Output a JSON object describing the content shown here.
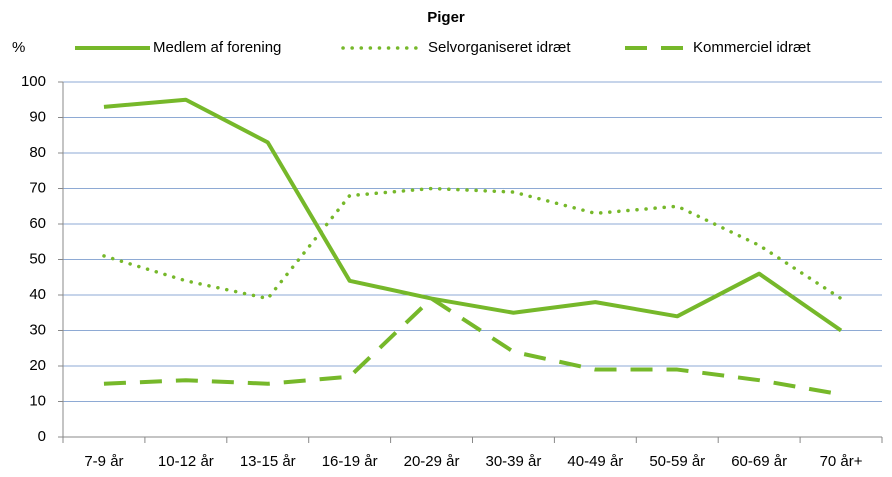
{
  "chart_data": {
    "type": "line",
    "title": "Piger",
    "y_label": "%",
    "categories": [
      "7-9 år",
      "10-12 år",
      "13-15 år",
      "16-19 år",
      "20-29 år",
      "30-39 år",
      "40-49 år",
      "50-59 år",
      "60-69 år",
      "70 år+"
    ],
    "series": [
      {
        "name": "Medlem af forening",
        "color": "#76b82a",
        "style": "solid",
        "values": [
          93,
          95,
          83,
          44,
          39,
          35,
          38,
          34,
          46,
          30
        ]
      },
      {
        "name": "Selvorganiseret idræt",
        "color": "#76b82a",
        "style": "dotted",
        "values": [
          51,
          44,
          39,
          68,
          70,
          69,
          63,
          65,
          54,
          39
        ]
      },
      {
        "name": "Kommerciel idræt",
        "color": "#76b82a",
        "style": "dashed",
        "values": [
          15,
          16,
          15,
          17,
          39,
          24,
          19,
          19,
          16,
          12
        ]
      }
    ],
    "ylim": [
      0,
      100
    ],
    "yticks": [
      0,
      10,
      20,
      30,
      40,
      50,
      60,
      70,
      80,
      90,
      100
    ],
    "grid": true,
    "legend": "top"
  }
}
